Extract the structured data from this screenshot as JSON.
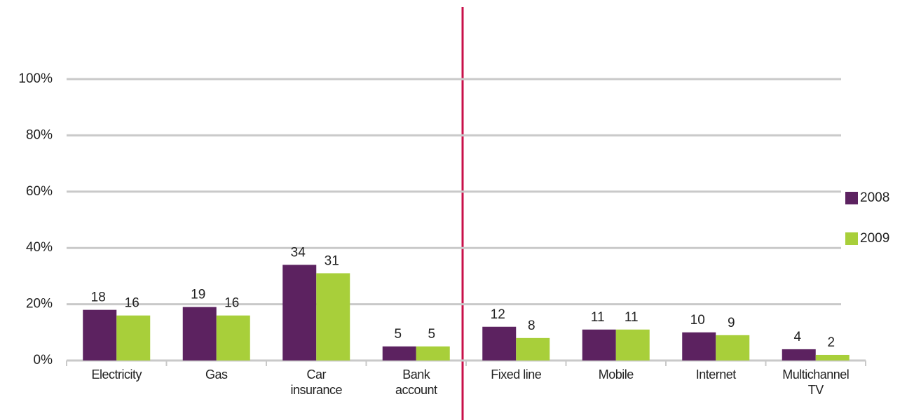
{
  "chart_data": {
    "type": "bar",
    "categories": [
      "Electricity",
      "Gas",
      "Car\ninsurance",
      "Bank\naccount",
      "Fixed line",
      "Mobile",
      "Internet",
      "Multichannel\nTV"
    ],
    "series": [
      {
        "name": "2008",
        "color": "#5c2260",
        "values": [
          18,
          19,
          34,
          5,
          12,
          11,
          10,
          4
        ]
      },
      {
        "name": "2009",
        "color": "#a8cf3a",
        "values": [
          16,
          16,
          31,
          5,
          8,
          11,
          9,
          2
        ]
      }
    ],
    "ylim": [
      0,
      100
    ],
    "yticks": [
      {
        "value": 0,
        "label": "0%"
      },
      {
        "value": 20,
        "label": "20%"
      },
      {
        "value": 40,
        "label": "40%"
      },
      {
        "value": 60,
        "label": "60%"
      },
      {
        "value": 80,
        "label": "80%"
      },
      {
        "value": 100,
        "label": "100%"
      }
    ],
    "grid": true,
    "legend": "right"
  }
}
